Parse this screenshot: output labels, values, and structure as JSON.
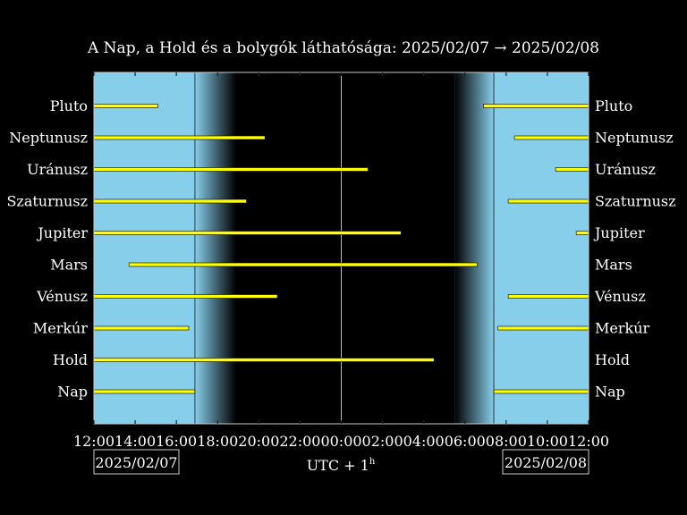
{
  "chart_data": {
    "type": "bar",
    "title": "A Nap, a Hold és a bolygók láthatósága: 2025/02/07 → 2025/02/08",
    "xlabel_main": "UTC + 1",
    "xlabel_sup": "h",
    "date_left": "2025/02/07",
    "date_right": "2025/02/08",
    "x_unit": "hours since 2025/02/07 12:00 (UTC+1)",
    "xlim": [
      0,
      24
    ],
    "x_ticks": [
      "12:00",
      "14:00",
      "16:00",
      "18:00",
      "20:00",
      "22:00",
      "00:00",
      "02:00",
      "04:00",
      "06:00",
      "08:00",
      "10:00",
      "12:00"
    ],
    "twilight": {
      "sunset": 4.9,
      "dark_start": 6.9,
      "midnight": 12.0,
      "dark_end": 17.5,
      "sunrise": 19.4
    },
    "colors": {
      "day": "#87ceeb",
      "night": "#000000",
      "bar": "#ffff00",
      "frame": "#cccccc",
      "text": "#ffffff"
    },
    "bodies": [
      {
        "name": "Pluto",
        "intervals": [
          [
            0,
            3.1
          ],
          [
            18.9,
            24
          ]
        ]
      },
      {
        "name": "Neptunusz",
        "intervals": [
          [
            0,
            8.3
          ],
          [
            20.4,
            24
          ]
        ]
      },
      {
        "name": "Uránusz",
        "intervals": [
          [
            0,
            13.3
          ],
          [
            22.4,
            24
          ]
        ]
      },
      {
        "name": "Szaturnusz",
        "intervals": [
          [
            0,
            7.4
          ],
          [
            20.1,
            24
          ]
        ]
      },
      {
        "name": "Jupiter",
        "intervals": [
          [
            0,
            14.9
          ],
          [
            23.4,
            24
          ]
        ]
      },
      {
        "name": "Mars",
        "intervals": [
          [
            1.7,
            18.6
          ]
        ]
      },
      {
        "name": "Vénusz",
        "intervals": [
          [
            0,
            8.9
          ],
          [
            20.1,
            24
          ]
        ]
      },
      {
        "name": "Merkúr",
        "intervals": [
          [
            0,
            4.6
          ],
          [
            19.6,
            24
          ]
        ]
      },
      {
        "name": "Hold",
        "intervals": [
          [
            0,
            16.5
          ]
        ]
      },
      {
        "name": "Nap",
        "intervals": [
          [
            0,
            4.9
          ],
          [
            19.4,
            24
          ]
        ]
      }
    ]
  }
}
